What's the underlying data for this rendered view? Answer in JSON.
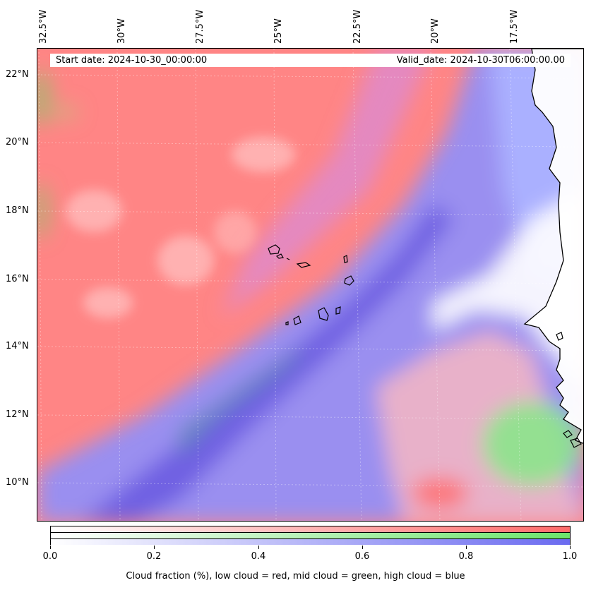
{
  "map": {
    "longitude_labels": [
      "32.5°W",
      "30°W",
      "27.5°W",
      "25°W",
      "22.5°W",
      "20°W",
      "17.5°W"
    ],
    "latitude_labels": [
      "22°N",
      "20°N",
      "18°N",
      "16°N",
      "14°N",
      "12°N",
      "10°N"
    ],
    "start_date": "Start date: 2024-10-30_00:00:00",
    "valid_date": "Valid_date: 2024-10-30T06:00:00.00",
    "colors": {
      "low_cloud": "#ff6b6b",
      "mid_cloud": "#6be56b",
      "high_cloud": "#6b6bf0",
      "coastline": "#000000"
    }
  },
  "colorbar": {
    "ticks": [
      "0.0",
      "0.2",
      "0.4",
      "0.6",
      "0.8",
      "1.0"
    ],
    "label": "Cloud fraction (%), low cloud = red, mid cloud = green, high cloud = blue"
  }
}
